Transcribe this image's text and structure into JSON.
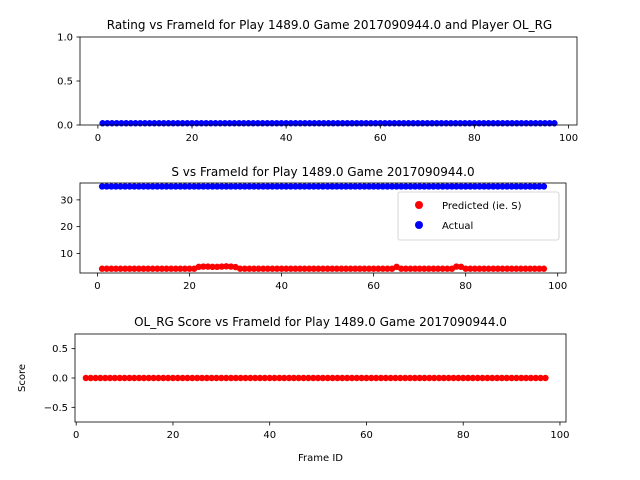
{
  "chart_data": [
    {
      "type": "scatter",
      "title": "Rating vs FrameId for Play 1489.0 Game 2017090944.0 and Player OL_RG",
      "xlabel": "",
      "ylabel": "",
      "xlim": [
        -3.8,
        101.8
      ],
      "ylim": [
        0.0,
        1.0
      ],
      "xticks": [
        0,
        20,
        40,
        60,
        80,
        100
      ],
      "yticks": [
        0.0,
        0.5,
        1.0
      ],
      "ytick_labels": [
        "0.0",
        "0.5",
        "1.0"
      ],
      "series": [
        {
          "color": "#0000ff",
          "x_start": 1,
          "x_end": 97,
          "y_base": 0.02,
          "bumps": []
        }
      ]
    },
    {
      "type": "scatter",
      "title": "S vs FrameId for Play 1489.0 Game 2017090944.0",
      "xlabel": "",
      "ylabel": "",
      "xlim": [
        -3.8,
        101.8
      ],
      "ylim": [
        2.7,
        36.3
      ],
      "xticks": [
        0,
        20,
        40,
        60,
        80,
        100
      ],
      "yticks": [
        10,
        20,
        30
      ],
      "ytick_labels": [
        "10",
        "20",
        "30"
      ],
      "legend": {
        "position": "center-right",
        "entries": [
          "Predicted (ie. S)",
          "Actual"
        ]
      },
      "series": [
        {
          "name": "Predicted (ie. S)",
          "color": "#ff0000",
          "x_start": 1,
          "x_end": 97,
          "y_base": 4.3,
          "bumps": [
            [
              22,
              5.0
            ],
            [
              23,
              5.1
            ],
            [
              24,
              5.1
            ],
            [
              25,
              5.0
            ],
            [
              26,
              5.0
            ],
            [
              27,
              5.1
            ],
            [
              28,
              5.2
            ],
            [
              29,
              5.1
            ],
            [
              30,
              4.9
            ],
            [
              65,
              5.0
            ],
            [
              78,
              5.1
            ],
            [
              79,
              5.0
            ]
          ]
        },
        {
          "name": "Actual",
          "color": "#0000ff",
          "x_start": 1,
          "x_end": 97,
          "y_base": 35.0,
          "bumps": []
        }
      ]
    },
    {
      "type": "scatter",
      "title": "OL_RG Score vs FrameId for Play 1489.0 Game 2017090944.0",
      "xlabel": "Frame ID",
      "ylabel": "Score",
      "xlim": [
        -0.25,
        101.25
      ],
      "ylim": [
        -0.75,
        0.75
      ],
      "xticks": [
        0,
        20,
        40,
        60,
        80,
        100
      ],
      "yticks": [
        -0.5,
        0.0,
        0.5
      ],
      "ytick_labels": [
        "−0.5",
        "0.0",
        "0.5"
      ],
      "series": [
        {
          "color": "#ff0000",
          "x_start": 2,
          "x_end": 97,
          "y_base": 0.0,
          "bumps": []
        }
      ]
    }
  ]
}
